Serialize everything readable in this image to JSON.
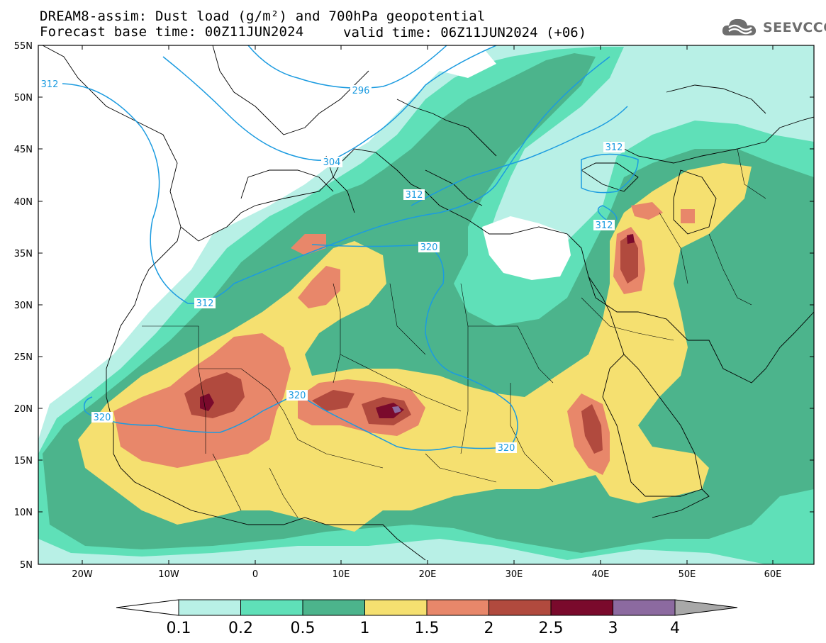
{
  "title_line1": "DREAM8-assim: Dust load (g/m²) and 700hPa geopotential",
  "title_line2_left": "Forecast base time: 00Z11JUN2024",
  "title_line2_right": "valid time: 06Z11JUN2024 (+06)",
  "logo_text": "SEEVCCC",
  "lat_labels": [
    "55N",
    "50N",
    "45N",
    "40N",
    "35N",
    "30N",
    "25N",
    "20N",
    "15N",
    "10N",
    "5N"
  ],
  "lon_labels": [
    "20W",
    "10W",
    "0",
    "10E",
    "20E",
    "30E",
    "40E",
    "50E",
    "60E"
  ],
  "geopotential_labels": [
    "312",
    "296",
    "304",
    "312",
    "312",
    "312",
    "320",
    "312",
    "320",
    "320",
    "320"
  ],
  "colorbar": {
    "levels": [
      "0.1",
      "0.2",
      "0.5",
      "1",
      "1.5",
      "2",
      "2.5",
      "3",
      "4"
    ],
    "colors": [
      "#ffffff",
      "#b8f0e6",
      "#5fe0b8",
      "#4cb48c",
      "#f5e070",
      "#e8876a",
      "#b14a3e",
      "#7a0a2c",
      "#8c6aa0",
      "#a8a8a8"
    ]
  },
  "colors": {
    "very_light": "#b8f0e6",
    "light_green": "#5fe0b8",
    "green": "#4cb48c",
    "yellow": "#f5e070",
    "orange": "#e8876a",
    "brown": "#b14a3e",
    "maroon": "#7a0a2c",
    "purple": "#8c6aa0",
    "contour": "#1b9be0"
  }
}
